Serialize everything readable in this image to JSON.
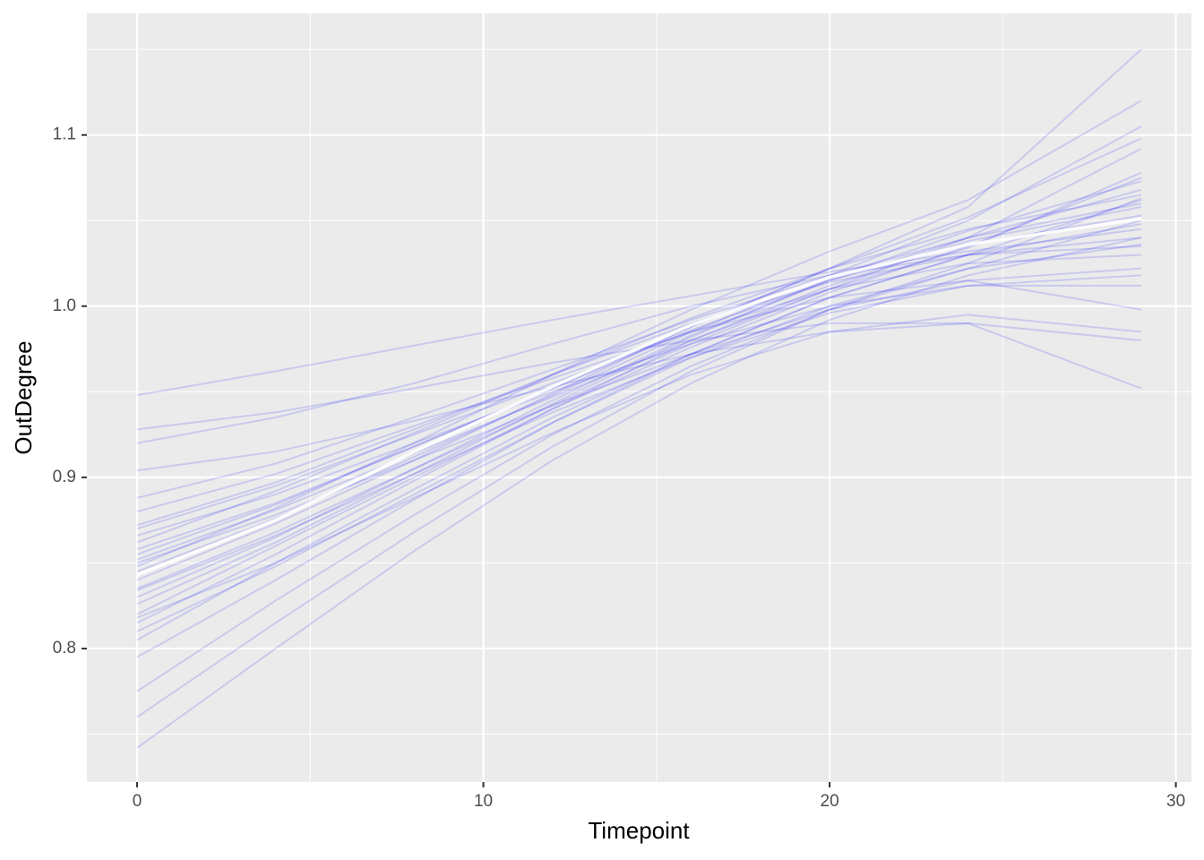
{
  "chart_data": {
    "type": "line",
    "x_label": "Timepoint",
    "y_label": "OutDegree",
    "x": [
      0,
      4,
      8,
      12,
      16,
      20,
      24,
      29
    ],
    "xlim": [
      -1.45,
      30.45
    ],
    "ylim": [
      0.722,
      1.171
    ],
    "xticks": [
      0,
      10,
      20,
      30
    ],
    "yticks": [
      0.8,
      0.9,
      {
        "value": 1,
        "label": "1.0"
      },
      1.1
    ],
    "x_minor_ticks": [
      5,
      15,
      25
    ],
    "y_minor_ticks": [
      0.75,
      0.85,
      0.95,
      1.05,
      1.15
    ],
    "grid": true,
    "line_opacity": 0.14,
    "series": [
      {
        "color": "#0000ff",
        "values": [
          0.948,
          0.962,
          0.977,
          0.992,
          1.006,
          1.02,
          1.032,
          1.045
        ]
      },
      {
        "color": "#0000ff",
        "values": [
          0.742,
          0.8,
          0.857,
          0.91,
          0.955,
          0.992,
          1.018,
          1.04
        ]
      },
      {
        "color": "#0000ff",
        "values": [
          0.775,
          0.828,
          0.878,
          0.925,
          0.965,
          0.998,
          1.022,
          1.05
        ]
      },
      {
        "color": "#0000ff",
        "values": [
          0.805,
          0.85,
          0.893,
          0.935,
          0.972,
          1.005,
          1.03,
          1.062
        ]
      },
      {
        "color": "#0000ff",
        "values": [
          0.82,
          0.86,
          0.9,
          0.94,
          0.976,
          1.008,
          1.035,
          1.075
        ]
      },
      {
        "color": "#0000ff",
        "values": [
          0.835,
          0.868,
          0.905,
          0.942,
          0.978,
          1.01,
          1.04,
          1.092
        ]
      },
      {
        "color": "#0000ff",
        "values": [
          0.845,
          0.876,
          0.912,
          0.948,
          0.985,
          1.018,
          1.05,
          1.105
        ]
      },
      {
        "color": "#0000ff",
        "values": [
          0.855,
          0.884,
          0.918,
          0.952,
          0.988,
          1.022,
          1.058,
          1.15
        ]
      },
      {
        "color": "#0000ff",
        "values": [
          0.862,
          0.892,
          0.926,
          0.96,
          0.993,
          1.022,
          1.045,
          1.065
        ]
      },
      {
        "color": "#0000ff",
        "values": [
          0.87,
          0.895,
          0.925,
          0.955,
          0.985,
          1.01,
          1.025,
          1.03
        ]
      },
      {
        "color": "#0000ff",
        "values": [
          0.88,
          0.902,
          0.93,
          0.958,
          0.985,
          1.005,
          1.015,
          0.998
        ]
      },
      {
        "color": "#0000ff",
        "values": [
          0.904,
          0.915,
          0.933,
          0.953,
          0.972,
          0.985,
          0.99,
          0.98
        ]
      },
      {
        "color": "#0000ff",
        "values": [
          0.928,
          0.938,
          0.952,
          0.967,
          0.98,
          0.99,
          0.99,
          0.952
        ]
      },
      {
        "color": "#0000ff",
        "values": [
          0.92,
          0.935,
          0.955,
          0.978,
          1.0,
          1.018,
          1.03,
          1.04
        ]
      },
      {
        "color": "#0000ff",
        "values": [
          0.83,
          0.865,
          0.905,
          0.945,
          0.983,
          1.015,
          1.04,
          1.06
        ]
      },
      {
        "color": "#0000ff",
        "values": [
          0.815,
          0.855,
          0.898,
          0.94,
          0.98,
          1.012,
          1.038,
          1.058
        ]
      },
      {
        "color": "#0000ff",
        "values": [
          0.795,
          0.84,
          0.887,
          0.932,
          0.972,
          1.005,
          1.03,
          1.048
        ]
      },
      {
        "color": "#0000ff",
        "values": [
          0.85,
          0.878,
          0.91,
          0.942,
          0.972,
          0.998,
          1.015,
          1.022
        ]
      },
      {
        "color": "#0000ff",
        "values": [
          0.858,
          0.885,
          0.918,
          0.952,
          0.986,
          1.015,
          1.036,
          1.053
        ]
      },
      {
        "color": "#0000ff",
        "values": [
          0.84,
          0.873,
          0.91,
          0.949,
          0.988,
          1.022,
          1.052,
          1.098
        ]
      },
      {
        "color": "#0000ff",
        "values": [
          0.826,
          0.862,
          0.902,
          0.943,
          0.982,
          1.016,
          1.044,
          1.073
        ]
      },
      {
        "color": "#0000ff",
        "values": [
          0.866,
          0.89,
          0.92,
          0.95,
          0.978,
          1.0,
          1.012,
          1.012
        ]
      },
      {
        "color": "#0000ff",
        "values": [
          0.81,
          0.848,
          0.89,
          0.932,
          0.97,
          1.0,
          1.022,
          1.036
        ]
      },
      {
        "color": "#0000ff",
        "values": [
          0.888,
          0.908,
          0.935,
          0.963,
          0.992,
          1.018,
          1.04,
          1.068
        ]
      },
      {
        "color": "#0000ff",
        "values": [
          0.76,
          0.815,
          0.868,
          0.918,
          0.962,
          0.998,
          1.025,
          1.063
        ]
      },
      {
        "color": "#0000ff",
        "values": [
          0.848,
          0.882,
          0.92,
          0.96,
          0.998,
          1.032,
          1.062,
          1.12
        ]
      },
      {
        "color": "#0000ff",
        "values": [
          0.872,
          0.897,
          0.928,
          0.96,
          0.99,
          1.014,
          1.03,
          1.035
        ]
      },
      {
        "color": "#0000ff",
        "values": [
          0.834,
          0.866,
          0.902,
          0.938,
          0.97,
          0.996,
          1.012,
          1.018
        ]
      },
      {
        "color": "#0000ff",
        "values": [
          0.852,
          0.881,
          0.914,
          0.947,
          0.98,
          1.01,
          1.034,
          1.078
        ]
      },
      {
        "color": "#0000ff",
        "values": [
          0.818,
          0.85,
          0.888,
          0.926,
          0.96,
          0.985,
          0.995,
          0.985
        ]
      }
    ],
    "mean_line": {
      "color": "#ffffff",
      "values": [
        0.843,
        0.875,
        0.915,
        0.953,
        0.989,
        1.017,
        1.036,
        1.051
      ]
    }
  }
}
